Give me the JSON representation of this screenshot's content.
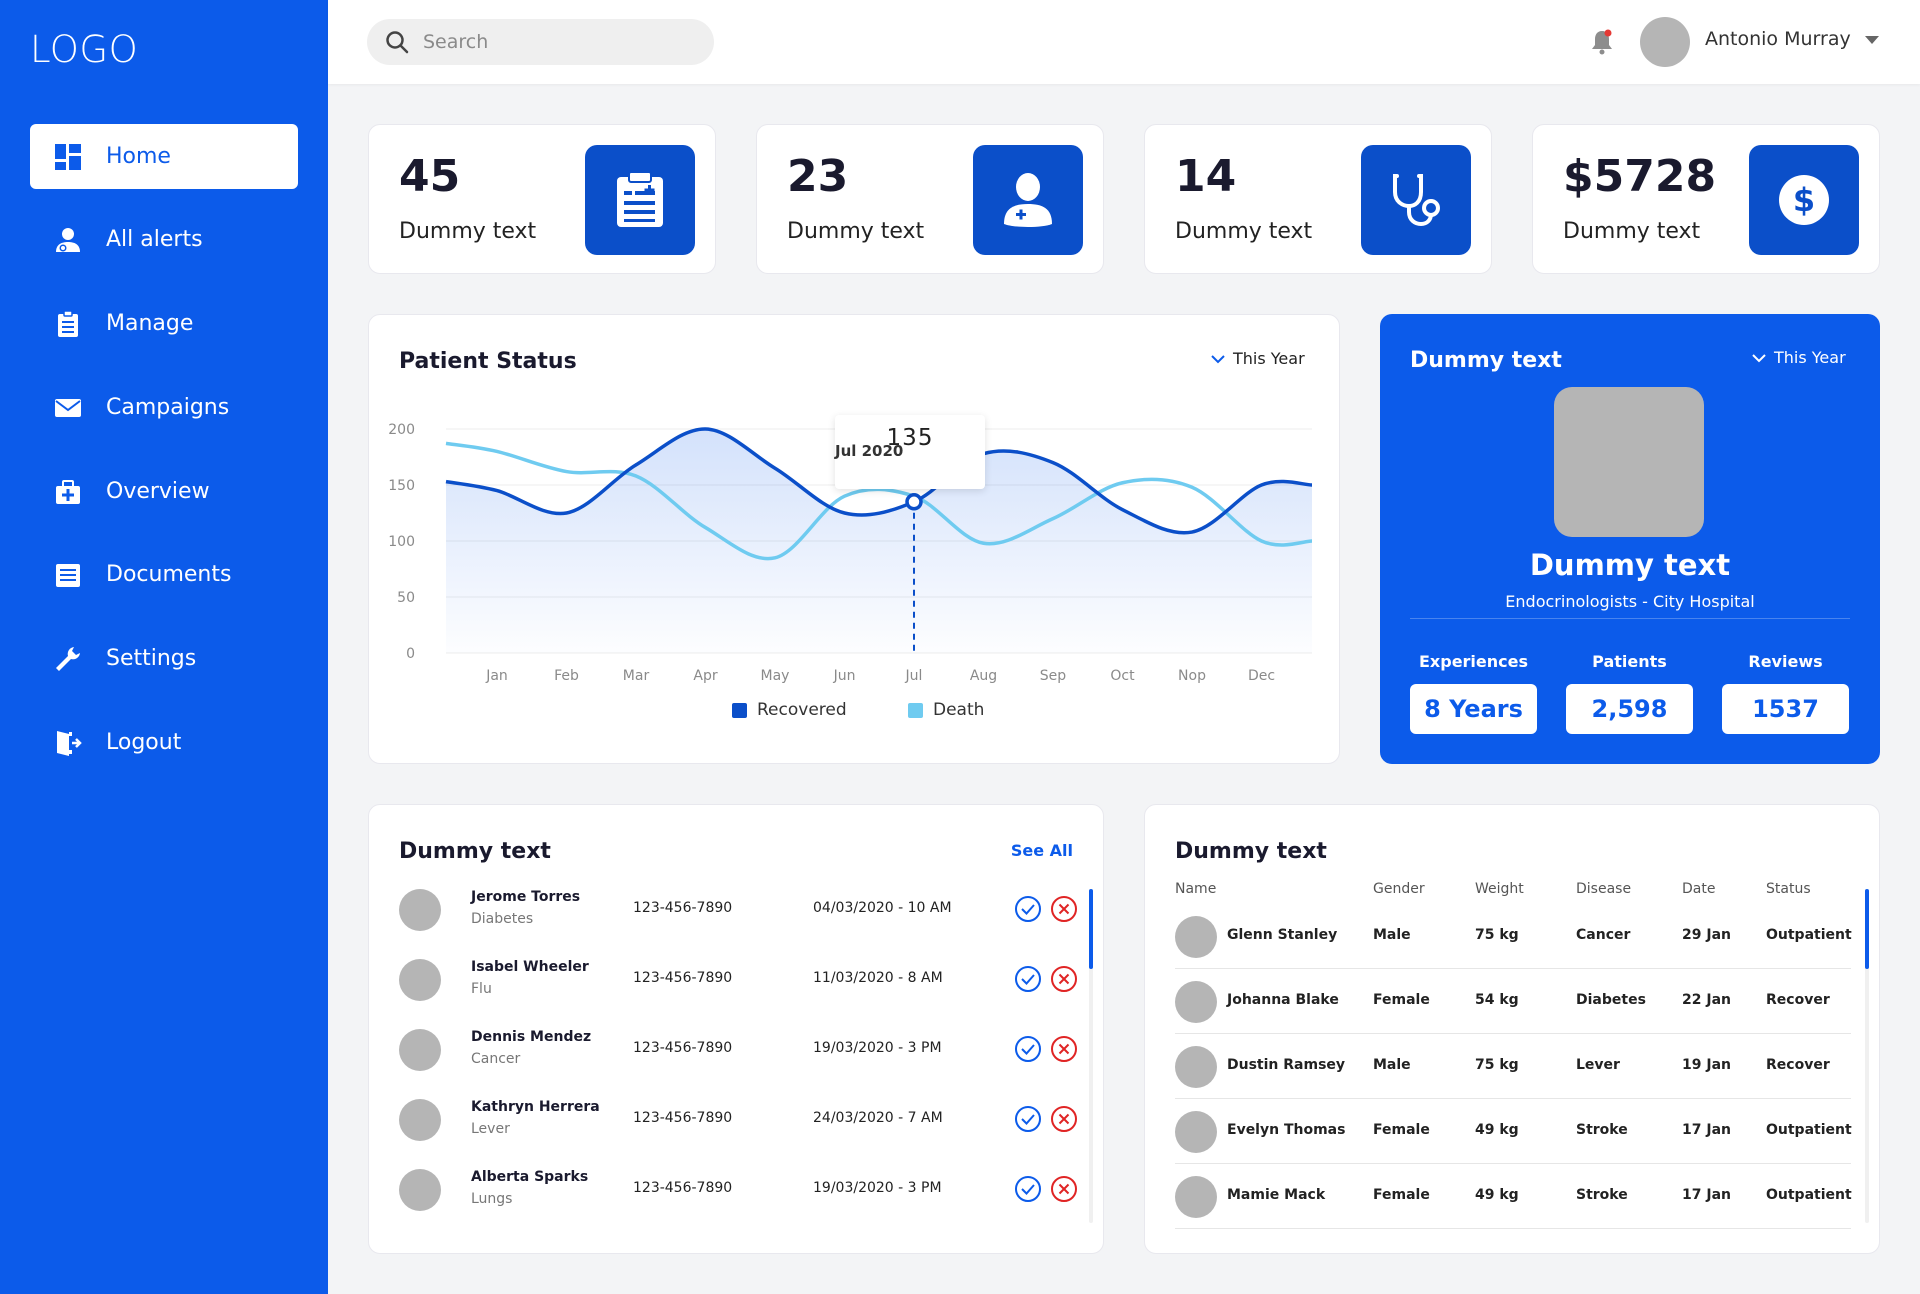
{
  "sidebar": {
    "logo": "LOGO",
    "items": [
      {
        "label": "Home",
        "icon": "dashboard-icon"
      },
      {
        "label": "All alerts",
        "icon": "user-alert-icon"
      },
      {
        "label": "Manage",
        "icon": "clipboard-icon"
      },
      {
        "label": "Campaigns",
        "icon": "mail-icon"
      },
      {
        "label": "Overview",
        "icon": "medical-kit-icon"
      },
      {
        "label": "Documents",
        "icon": "document-icon"
      },
      {
        "label": "Settings",
        "icon": "wrench-icon"
      },
      {
        "label": "Logout",
        "icon": "logout-icon"
      }
    ]
  },
  "topbar": {
    "search_placeholder": "Search",
    "user_name": "Antonio Murray"
  },
  "stats": [
    {
      "value": "45",
      "label": "Dummy text",
      "icon": "clipboard-list-icon"
    },
    {
      "value": "23",
      "label": "Dummy text",
      "icon": "doctor-icon"
    },
    {
      "value": "14",
      "label": "Dummy text",
      "icon": "stethoscope-icon"
    },
    {
      "value": "$5728",
      "label": "Dummy text",
      "icon": "dollar-icon"
    }
  ],
  "patient_status": {
    "title": "Patient Status",
    "period": "This Year",
    "tooltip": {
      "value": "135",
      "date": "Jul 2020"
    }
  },
  "chart_data": {
    "type": "line",
    "categories": [
      "Jan",
      "Feb",
      "Mar",
      "Apr",
      "May",
      "Jun",
      "Jul",
      "Aug",
      "Sep",
      "Oct",
      "Nop",
      "Dec"
    ],
    "yticks": [
      0,
      50,
      100,
      150,
      200
    ],
    "ylim": [
      0,
      200
    ],
    "series": [
      {
        "name": "Recovered",
        "color": "#0b4fc9",
        "values": [
          145,
          125,
          168,
          200,
          165,
          125,
          135,
          178,
          170,
          128,
          108,
          150
        ]
      },
      {
        "name": "Death",
        "color": "#6fcbf0",
        "values": [
          180,
          162,
          158,
          112,
          85,
          140,
          140,
          98,
          120,
          152,
          148,
          100
        ]
      }
    ]
  },
  "doctor": {
    "title": "Dummy text",
    "period": "This Year",
    "name": "Dummy text",
    "subtitle": "Endocrinologists - City Hospital",
    "stats": [
      {
        "label": "Experiences",
        "value": "8 Years"
      },
      {
        "label": "Patients",
        "value": "2,598"
      },
      {
        "label": "Reviews",
        "value": "1537"
      }
    ]
  },
  "appointments": {
    "title": "Dummy text",
    "see_all": "See All",
    "rows": [
      {
        "name": "Jerome Torres",
        "disease": "Diabetes",
        "phone": "123-456-7890",
        "date": "04/03/2020 - 10 AM"
      },
      {
        "name": "Isabel Wheeler",
        "disease": "Flu",
        "phone": "123-456-7890",
        "date": "11/03/2020 - 8 AM"
      },
      {
        "name": "Dennis Mendez",
        "disease": "Cancer",
        "phone": "123-456-7890",
        "date": "19/03/2020 - 3 PM"
      },
      {
        "name": "Kathryn Herrera",
        "disease": "Lever",
        "phone": "123-456-7890",
        "date": "24/03/2020 - 7 AM"
      },
      {
        "name": "Alberta Sparks",
        "disease": "Lungs",
        "phone": "123-456-7890",
        "date": "19/03/2020 - 3 PM"
      }
    ]
  },
  "patients_table": {
    "title": "Dummy text",
    "columns": [
      "Name",
      "Gender",
      "Weight",
      "Disease",
      "Date",
      "Status"
    ],
    "rows": [
      {
        "name": "Glenn Stanley",
        "gender": "Male",
        "weight": "75 kg",
        "disease": "Cancer",
        "date": "29 Jan",
        "status": "Outpatient"
      },
      {
        "name": "Johanna Blake",
        "gender": "Female",
        "weight": "54 kg",
        "disease": "Diabetes",
        "date": "22 Jan",
        "status": "Recover"
      },
      {
        "name": "Dustin Ramsey",
        "gender": "Male",
        "weight": "75 kg",
        "disease": "Lever",
        "date": "19 Jan",
        "status": "Recover"
      },
      {
        "name": "Evelyn Thomas",
        "gender": "Female",
        "weight": "49 kg",
        "disease": "Stroke",
        "date": "17 Jan",
        "status": "Outpatient"
      },
      {
        "name": "Mamie Mack",
        "gender": "Female",
        "weight": "49 kg",
        "disease": "Stroke",
        "date": "17 Jan",
        "status": "Outpatient"
      }
    ]
  },
  "colors": {
    "primary": "#0c5bea",
    "icon_bg": "#0b4fc9",
    "death": "#6fcbf0",
    "accept": "#0c5bea",
    "reject": "#e02424"
  }
}
